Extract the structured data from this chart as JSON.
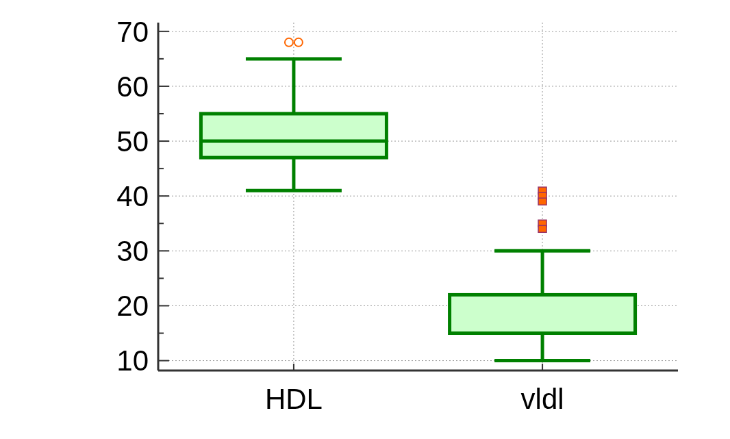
{
  "chart_data": {
    "type": "box",
    "categories": [
      "HDL",
      "vldl"
    ],
    "series": [
      {
        "color": "#008000",
        "marker": "circle",
        "boxes": [
          {
            "low": 41,
            "q1": 47,
            "median": 50,
            "q3": 55,
            "high": 65,
            "outliers": [
              68,
              68
            ]
          },
          null
        ]
      },
      {
        "color": "#008000",
        "marker": "square",
        "boxes": [
          null,
          {
            "low": 10,
            "q1": 15,
            "median": 15,
            "q3": 22,
            "high": 30,
            "outliers": [
              41,
              40,
              39,
              35,
              34
            ]
          }
        ]
      }
    ],
    "ylim": [
      8.2,
      71.6
    ],
    "yticks": [
      10,
      {
        "value": 15,
        "label": null
      },
      20,
      {
        "value": 25,
        "label": null
      },
      30,
      {
        "value": 35,
        "label": null
      },
      40,
      {
        "value": 45,
        "label": null
      },
      50,
      {
        "value": 55,
        "label": null
      },
      60,
      {
        "value": 65,
        "label": null
      },
      70
    ],
    "grid": true
  }
}
